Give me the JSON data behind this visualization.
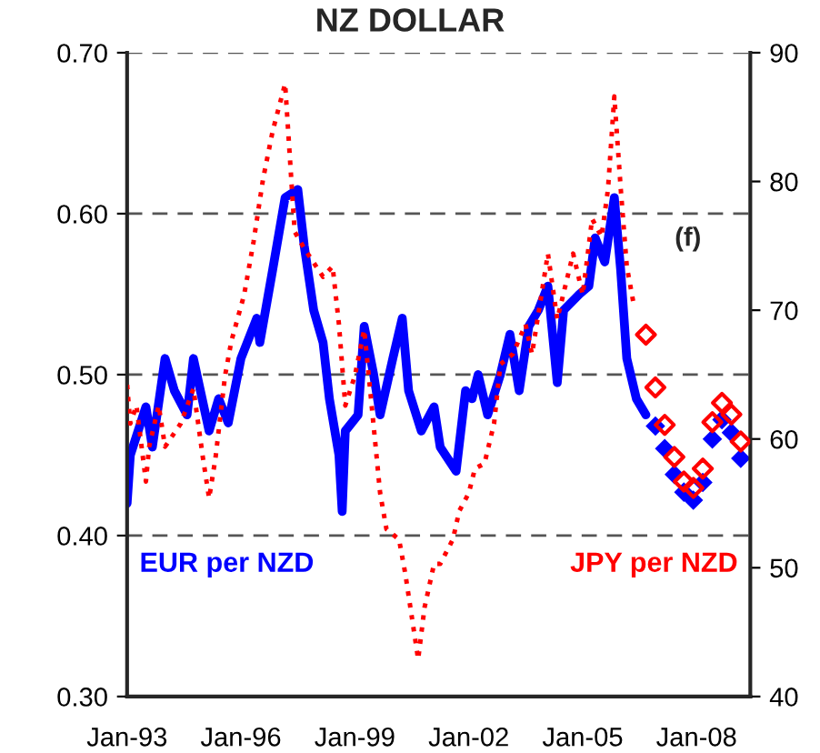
{
  "chart_data": {
    "type": "line",
    "title": "NZ DOLLAR",
    "annotations": [
      "(f)"
    ],
    "xlim": [
      "1993-01",
      "2009-06"
    ],
    "xticks": [
      {
        "value": "1993-01",
        "label": "Jan-93"
      },
      {
        "value": "1996-01",
        "label": "Jan-96"
      },
      {
        "value": "1999-01",
        "label": "Jan-99"
      },
      {
        "value": "2002-01",
        "label": "Jan-02"
      },
      {
        "value": "2005-01",
        "label": "Jan-05"
      },
      {
        "value": "2008-01",
        "label": "Jan-08"
      }
    ],
    "ylim": [
      0.3,
      0.7
    ],
    "yticks": [
      {
        "value": 0.3,
        "label": "0.30"
      },
      {
        "value": 0.4,
        "label": "0.40"
      },
      {
        "value": 0.5,
        "label": "0.50"
      },
      {
        "value": 0.6,
        "label": "0.60"
      },
      {
        "value": 0.7,
        "label": "0.70"
      }
    ],
    "y2lim": [
      40,
      90
    ],
    "y2ticks": [
      40,
      50,
      60,
      70,
      80,
      90
    ],
    "grid": "y",
    "legend": false,
    "series": [
      {
        "name": "EUR per NZD",
        "line_style": "solid",
        "color": "#0000ff",
        "x": [
          "1993-01",
          "1993-02",
          "1993-07",
          "1993-09",
          "1994-01",
          "1994-04",
          "1994-08",
          "1994-10",
          "1995-03",
          "1995-06",
          "1995-09",
          "1996-01",
          "1996-06",
          "1996-07",
          "1996-11",
          "1997-03",
          "1997-07",
          "1997-09",
          "1997-12",
          "1998-03",
          "1998-05",
          "1998-08",
          "1998-09",
          "1998-10",
          "1999-02",
          "1999-04",
          "1999-07",
          "1999-09",
          "2000-01",
          "2000-04",
          "2000-06",
          "2000-10",
          "2001-02",
          "2001-04",
          "2001-09",
          "2001-12",
          "2002-02",
          "2002-04",
          "2002-07",
          "2002-11",
          "2003-02",
          "2003-05",
          "2003-08",
          "2003-11",
          "2004-02",
          "2004-05",
          "2004-07",
          "2004-12",
          "2005-03",
          "2005-05",
          "2005-08",
          "2005-11",
          "2006-01",
          "2006-03",
          "2006-06",
          "2006-09"
        ],
        "values": [
          0.42,
          0.45,
          0.48,
          0.455,
          0.51,
          0.49,
          0.475,
          0.51,
          0.465,
          0.485,
          0.47,
          0.51,
          0.535,
          0.52,
          0.565,
          0.61,
          0.615,
          0.58,
          0.54,
          0.52,
          0.485,
          0.45,
          0.415,
          0.465,
          0.475,
          0.53,
          0.5,
          0.475,
          0.51,
          0.535,
          0.49,
          0.465,
          0.48,
          0.455,
          0.44,
          0.49,
          0.485,
          0.5,
          0.475,
          0.5,
          0.525,
          0.49,
          0.53,
          0.54,
          0.555,
          0.495,
          0.54,
          0.55,
          0.555,
          0.585,
          0.57,
          0.61,
          0.565,
          0.51,
          0.485,
          0.475
        ]
      },
      {
        "name": "JPY per NZD",
        "line_style": "dotted",
        "axis": "y2",
        "color": "#ff0000",
        "x": [
          "1993-01",
          "1993-02",
          "1993-04",
          "1993-07",
          "1993-08",
          "1993-11",
          "1994-01",
          "1994-06",
          "1994-10",
          "1995-01",
          "1995-03",
          "1995-05",
          "1995-08",
          "1995-10",
          "1996-02",
          "1996-05",
          "1996-08",
          "1996-11",
          "1997-03",
          "1997-06",
          "1997-09",
          "1998-03",
          "1998-06",
          "1998-08",
          "1998-10",
          "1999-01",
          "1999-04",
          "1999-06",
          "1999-09",
          "1999-11",
          "2000-03",
          "2000-05",
          "2000-09",
          "2000-11",
          "2001-02",
          "2001-04",
          "2001-08",
          "2001-10",
          "2002-01",
          "2002-03",
          "2002-06",
          "2002-09",
          "2002-11",
          "2003-03",
          "2003-07",
          "2003-09",
          "2003-12",
          "2004-02",
          "2004-05",
          "2004-10",
          "2005-01",
          "2005-04",
          "2005-07",
          "2005-09",
          "2005-11",
          "2006-01",
          "2006-03",
          "2006-05"
        ],
        "values": [
          64.2,
          61.2,
          62.6,
          56.7,
          59.4,
          62.6,
          59.4,
          61.2,
          63.9,
          58.5,
          55.4,
          58.5,
          64.9,
          67.6,
          71.2,
          75.3,
          80.2,
          83.9,
          87.6,
          76.1,
          74.8,
          72.6,
          73.4,
          68.9,
          62.6,
          64.9,
          68.5,
          63.5,
          55.8,
          53.0,
          52.2,
          49.5,
          42.9,
          46.9,
          50.3,
          50.3,
          52.2,
          54.4,
          55.8,
          57.7,
          58.1,
          61.2,
          65.8,
          66.6,
          68.9,
          66.6,
          71.2,
          74.4,
          69.3,
          74.4,
          71.2,
          77.1,
          75.7,
          79.4,
          86.6,
          79.5,
          73.4,
          70.7
        ]
      },
      {
        "type": "scatter",
        "marker": "diamond",
        "color": "#0000ff",
        "x": [
          "2006-12",
          "2007-03",
          "2007-06",
          "2007-09",
          "2007-12",
          "2008-03",
          "2008-06",
          "2008-09",
          "2008-12",
          "2009-03"
        ],
        "values": [
          0.468,
          0.454,
          0.438,
          0.427,
          0.422,
          0.433,
          0.46,
          0.472,
          0.464,
          0.448
        ]
      },
      {
        "type": "scatter",
        "marker": "diamond",
        "axis": "y2",
        "color": "#ff0000",
        "x": [
          "2006-09",
          "2006-12",
          "2007-03",
          "2007-06",
          "2007-09",
          "2007-12",
          "2008-03",
          "2008-06",
          "2008-09",
          "2008-12",
          "2009-03"
        ],
        "values": [
          68.1,
          64.0,
          61.1,
          58.6,
          56.7,
          56.2,
          57.7,
          61.3,
          62.8,
          61.9,
          59.8
        ]
      }
    ]
  }
}
